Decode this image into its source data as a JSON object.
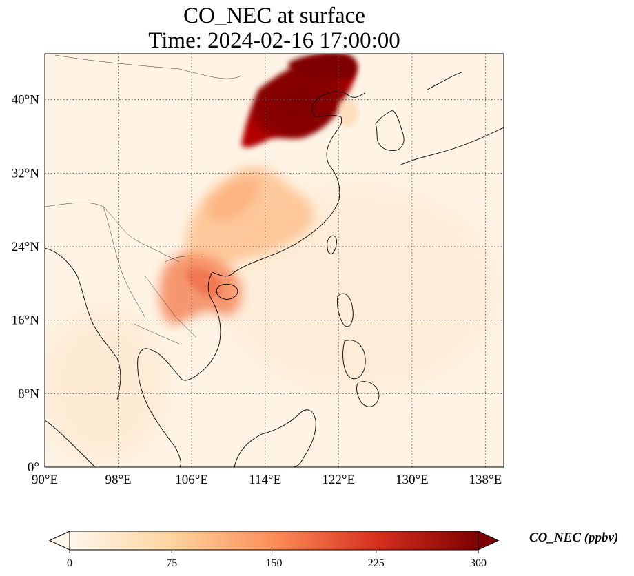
{
  "title": {
    "line1": "CO_NEC at surface",
    "line2": "Time: 2024-02-16 17:00:00"
  },
  "map": {
    "lon_range": [
      90,
      140
    ],
    "lat_range": [
      0,
      45
    ],
    "lon_ticks": [
      {
        "value": 90,
        "label": "90°E"
      },
      {
        "value": 98,
        "label": "98°E"
      },
      {
        "value": 106,
        "label": "106°E"
      },
      {
        "value": 114,
        "label": "114°E"
      },
      {
        "value": 122,
        "label": "122°E"
      },
      {
        "value": 130,
        "label": "130°E"
      },
      {
        "value": 138,
        "label": "138°E"
      }
    ],
    "lat_ticks": [
      {
        "value": 0,
        "label": "0°"
      },
      {
        "value": 8,
        "label": "8°N"
      },
      {
        "value": 16,
        "label": "16°N"
      },
      {
        "value": 24,
        "label": "24°N"
      },
      {
        "value": 32,
        "label": "32°N"
      },
      {
        "value": 40,
        "label": "40°N"
      }
    ],
    "gridlines": true,
    "gridline_style": "dotted",
    "colormap": "OrRd"
  },
  "colorbar": {
    "label": "CO_NEC (ppbv)",
    "min": 0,
    "max": 300,
    "extend": "both",
    "ticks": [
      {
        "value": 0,
        "label": "0"
      },
      {
        "value": 75,
        "label": "75"
      },
      {
        "value": 150,
        "label": "150"
      },
      {
        "value": 225,
        "label": "225"
      },
      {
        "value": 300,
        "label": "300"
      }
    ],
    "colors": [
      "#fff7ec",
      "#fdd49e",
      "#fc8d59",
      "#d7301f",
      "#7f0000"
    ]
  },
  "plumes": [
    {
      "region": "North China Plain",
      "level": "300+"
    },
    {
      "region": "Southern China",
      "level": "75-110"
    },
    {
      "region": "Northern Vietnam / Laos",
      "level": "130-170"
    },
    {
      "region": "Hainan",
      "level": "110-140"
    }
  ]
}
